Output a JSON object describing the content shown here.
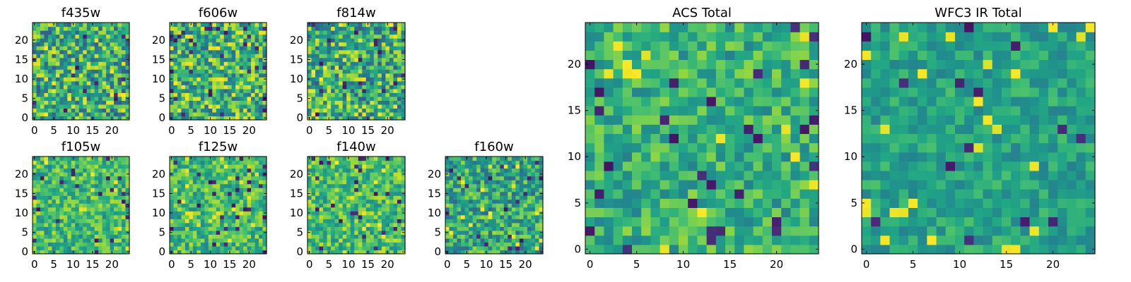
{
  "chart_data": [
    {
      "type": "heatmap",
      "title": "f435w",
      "shape": [
        25,
        25
      ],
      "xlim": [
        -0.5,
        24.5
      ],
      "ylim": [
        -0.5,
        24.5
      ],
      "xticks": [
        0,
        5,
        10,
        15,
        20
      ],
      "yticks": [
        0,
        5,
        10,
        15,
        20
      ],
      "colormap": "viridis",
      "seed": 11,
      "base": 0.62,
      "noise": 0.33
    },
    {
      "type": "heatmap",
      "title": "f606w",
      "shape": [
        25,
        25
      ],
      "xlim": [
        -0.5,
        24.5
      ],
      "ylim": [
        -0.5,
        24.5
      ],
      "xticks": [
        0,
        5,
        10,
        15,
        20
      ],
      "yticks": [
        0,
        5,
        10,
        15,
        20
      ],
      "colormap": "viridis",
      "seed": 23,
      "base": 0.66,
      "noise": 0.32
    },
    {
      "type": "heatmap",
      "title": "f814w",
      "shape": [
        25,
        25
      ],
      "xlim": [
        -0.5,
        24.5
      ],
      "ylim": [
        -0.5,
        24.5
      ],
      "xticks": [
        0,
        5,
        10,
        15,
        20
      ],
      "yticks": [
        0,
        5,
        10,
        15,
        20
      ],
      "colormap": "viridis",
      "seed": 37,
      "base": 0.62,
      "noise": 0.33
    },
    {
      "type": "heatmap",
      "title": "f105w",
      "shape": [
        25,
        25
      ],
      "xlim": [
        -0.5,
        24.5
      ],
      "ylim": [
        -0.5,
        24.5
      ],
      "xticks": [
        0,
        5,
        10,
        15,
        20
      ],
      "yticks": [
        0,
        5,
        10,
        15,
        20
      ],
      "colormap": "viridis",
      "seed": 41,
      "base": 0.68,
      "noise": 0.22
    },
    {
      "type": "heatmap",
      "title": "f125w",
      "shape": [
        25,
        25
      ],
      "xlim": [
        -0.5,
        24.5
      ],
      "ylim": [
        -0.5,
        24.5
      ],
      "xticks": [
        0,
        5,
        10,
        15,
        20
      ],
      "yticks": [
        0,
        5,
        10,
        15,
        20
      ],
      "colormap": "viridis",
      "seed": 53,
      "base": 0.68,
      "noise": 0.22
    },
    {
      "type": "heatmap",
      "title": "f140w",
      "shape": [
        25,
        25
      ],
      "xlim": [
        -0.5,
        24.5
      ],
      "ylim": [
        -0.5,
        24.5
      ],
      "xticks": [
        0,
        5,
        10,
        15,
        20
      ],
      "yticks": [
        0,
        5,
        10,
        15,
        20
      ],
      "colormap": "viridis",
      "seed": 67,
      "base": 0.7,
      "noise": 0.22
    },
    {
      "type": "heatmap",
      "title": "f160w",
      "shape": [
        25,
        25
      ],
      "xlim": [
        -0.5,
        24.5
      ],
      "ylim": [
        -0.5,
        24.5
      ],
      "xticks": [
        0,
        5,
        10,
        15,
        20
      ],
      "yticks": [
        0,
        5,
        10,
        15,
        20
      ],
      "colormap": "viridis",
      "seed": 79,
      "base": 0.6,
      "noise": 0.26
    },
    {
      "type": "heatmap",
      "title": "ACS Total",
      "shape": [
        25,
        25
      ],
      "xlim": [
        -0.5,
        24.5
      ],
      "ylim": [
        -0.5,
        24.5
      ],
      "xticks": [
        0,
        5,
        10,
        15,
        20
      ],
      "yticks": [
        0,
        5,
        10,
        15,
        20
      ],
      "colormap": "viridis",
      "seed": 97,
      "base": 0.64,
      "noise": 0.2
    },
    {
      "type": "heatmap",
      "title": "WFC3 IR Total",
      "shape": [
        25,
        25
      ],
      "xlim": [
        -0.5,
        24.5
      ],
      "ylim": [
        -0.5,
        24.5
      ],
      "xticks": [
        0,
        5,
        10,
        15,
        20
      ],
      "yticks": [
        0,
        5,
        10,
        15,
        20
      ],
      "colormap": "viridis",
      "seed": 131,
      "base": 0.58,
      "noise": 0.14
    }
  ]
}
